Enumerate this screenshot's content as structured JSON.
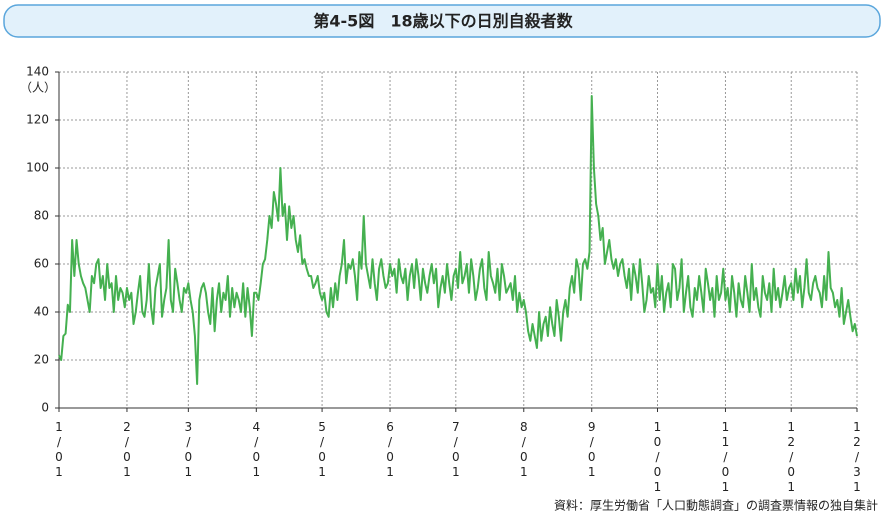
{
  "chart_data": {
    "type": "line",
    "title": "第4-5図　18歳以下の日別自殺者数",
    "y_unit": "（人）",
    "source": "資料：厚生労働省「人口動態調査」の調査票情報の独自集計",
    "color": "#45b050",
    "grid": true,
    "ylim": [
      0,
      140
    ],
    "yticks": [
      0,
      20,
      40,
      60,
      80,
      100,
      120,
      140
    ],
    "categories": [
      "1/01",
      null,
      null,
      null,
      null,
      null,
      null,
      null,
      null,
      null,
      null,
      null,
      null,
      null,
      null,
      null,
      null,
      null,
      null,
      null,
      null,
      null,
      null,
      null,
      null,
      null,
      null,
      null,
      null,
      null,
      null,
      "2/01",
      null,
      null,
      null,
      null,
      null,
      null,
      null,
      null,
      null,
      null,
      null,
      null,
      null,
      null,
      null,
      null,
      null,
      null,
      null,
      null,
      null,
      null,
      null,
      null,
      null,
      null,
      null,
      "3/01",
      null,
      null,
      null,
      null,
      null,
      null,
      null,
      null,
      null,
      null,
      null,
      null,
      null,
      null,
      null,
      null,
      null,
      null,
      null,
      null,
      null,
      null,
      null,
      null,
      null,
      null,
      null,
      null,
      null,
      null,
      "4/01",
      null,
      null,
      null,
      null,
      null,
      null,
      null,
      null,
      null,
      null,
      null,
      null,
      null,
      null,
      null,
      null,
      null,
      null,
      null,
      null,
      null,
      null,
      null,
      null,
      null,
      null,
      null,
      null,
      null,
      "5/01",
      null,
      null,
      null,
      null,
      null,
      null,
      null,
      null,
      null,
      null,
      null,
      null,
      null,
      null,
      null,
      null,
      null,
      null,
      null,
      null,
      null,
      null,
      null,
      null,
      null,
      null,
      null,
      null,
      null,
      null,
      "6/01",
      null,
      null,
      null,
      null,
      null,
      null,
      null,
      null,
      null,
      null,
      null,
      null,
      null,
      null,
      null,
      null,
      null,
      null,
      null,
      null,
      null,
      null,
      null,
      null,
      null,
      null,
      null,
      null,
      null,
      "7/01",
      null,
      null,
      null,
      null,
      null,
      null,
      null,
      null,
      null,
      null,
      null,
      null,
      null,
      null,
      null,
      null,
      null,
      null,
      null,
      null,
      null,
      null,
      null,
      null,
      null,
      null,
      null,
      null,
      null,
      null,
      "8/01",
      null,
      null,
      null,
      null,
      null,
      null,
      null,
      null,
      null,
      null,
      null,
      null,
      null,
      null,
      null,
      null,
      null,
      null,
      null,
      null,
      null,
      null,
      null,
      null,
      null,
      null,
      null,
      null,
      null,
      null,
      "9/01",
      null,
      null,
      null,
      null,
      null,
      null,
      null,
      null,
      null,
      null,
      null,
      null,
      null,
      null,
      null,
      null,
      null,
      null,
      null,
      null,
      null,
      null,
      null,
      null,
      null,
      null,
      null,
      null,
      null,
      "10/01",
      null,
      null,
      null,
      null,
      null,
      null,
      null,
      null,
      null,
      null,
      null,
      null,
      null,
      null,
      null,
      null,
      null,
      null,
      null,
      null,
      null,
      null,
      null,
      null,
      null,
      null,
      null,
      null,
      null,
      null,
      "11/01",
      null,
      null,
      null,
      null,
      null,
      null,
      null,
      null,
      null,
      null,
      null,
      null,
      null,
      null,
      null,
      null,
      null,
      null,
      null,
      null,
      null,
      null,
      null,
      null,
      null,
      null,
      null,
      null,
      null,
      "12/01",
      null,
      null,
      null,
      null,
      null,
      null,
      null,
      null,
      null,
      null,
      null,
      null,
      null,
      null,
      null,
      null,
      null,
      null,
      null,
      null,
      null,
      null,
      null,
      null,
      null,
      null,
      null,
      null,
      null,
      "12/31"
    ],
    "values": [
      22,
      20,
      30,
      31,
      43,
      40,
      70,
      55,
      70,
      60,
      55,
      52,
      50,
      45,
      40,
      55,
      52,
      60,
      62,
      50,
      55,
      45,
      60,
      50,
      52,
      40,
      55,
      45,
      50,
      48,
      42,
      50,
      45,
      48,
      35,
      40,
      48,
      55,
      40,
      38,
      45,
      60,
      42,
      35,
      50,
      55,
      60,
      38,
      45,
      50,
      70,
      45,
      40,
      58,
      52,
      45,
      40,
      50,
      48,
      52,
      45,
      40,
      30,
      10,
      45,
      50,
      52,
      48,
      40,
      35,
      50,
      32,
      45,
      52,
      40,
      48,
      45,
      55,
      38,
      50,
      42,
      48,
      45,
      40,
      52,
      38,
      50,
      42,
      30,
      48,
      48,
      45,
      52,
      60,
      62,
      70,
      80,
      75,
      90,
      85,
      78,
      100,
      80,
      85,
      70,
      84,
      75,
      80,
      70,
      65,
      72,
      60,
      62,
      58,
      55,
      55,
      50,
      52,
      55,
      48,
      45,
      48,
      40,
      38,
      50,
      42,
      52,
      45,
      55,
      60,
      70,
      52,
      60,
      58,
      62,
      55,
      45,
      65,
      58,
      80,
      60,
      55,
      50,
      62,
      52,
      45,
      58,
      62,
      55,
      50,
      52,
      60,
      55,
      58,
      48,
      62,
      55,
      52,
      58,
      45,
      55,
      60,
      50,
      62,
      55,
      45,
      58,
      52,
      48,
      55,
      60,
      52,
      58,
      42,
      50,
      55,
      48,
      60,
      52,
      45,
      55,
      58,
      50,
      65,
      52,
      55,
      60,
      48,
      62,
      55,
      45,
      50,
      58,
      62,
      50,
      45,
      65,
      55,
      52,
      48,
      58,
      45,
      60,
      55,
      48,
      50,
      52,
      45,
      55,
      40,
      48,
      42,
      45,
      40,
      32,
      28,
      35,
      30,
      25,
      40,
      28,
      35,
      38,
      30,
      42,
      35,
      30,
      45,
      38,
      28,
      40,
      45,
      38,
      50,
      55,
      48,
      62,
      58,
      45,
      60,
      62,
      58,
      65,
      130,
      100,
      85,
      80,
      70,
      75,
      60,
      65,
      70,
      62,
      58,
      62,
      55,
      60,
      62,
      55,
      50,
      58,
      45,
      60,
      55,
      48,
      62,
      52,
      40,
      45,
      55,
      48,
      50,
      42,
      60,
      45,
      55,
      40,
      48,
      52,
      42,
      60,
      58,
      45,
      50,
      62,
      40,
      48,
      55,
      42,
      38,
      50,
      45,
      55,
      48,
      40,
      58,
      52,
      45,
      50,
      38,
      55,
      45,
      48,
      58,
      45,
      50,
      40,
      55,
      48,
      38,
      52,
      45,
      42,
      55,
      48,
      40,
      60,
      45,
      50,
      42,
      38,
      55,
      48,
      45,
      52,
      40,
      58,
      45,
      50,
      42,
      48,
      55,
      45,
      50,
      52,
      45,
      58,
      48,
      55,
      42,
      50,
      62,
      48,
      45,
      52,
      55,
      50,
      48,
      42,
      55,
      45,
      65,
      50,
      48,
      42,
      45,
      38,
      50,
      35,
      40,
      45,
      38,
      32,
      35,
      30
    ]
  }
}
